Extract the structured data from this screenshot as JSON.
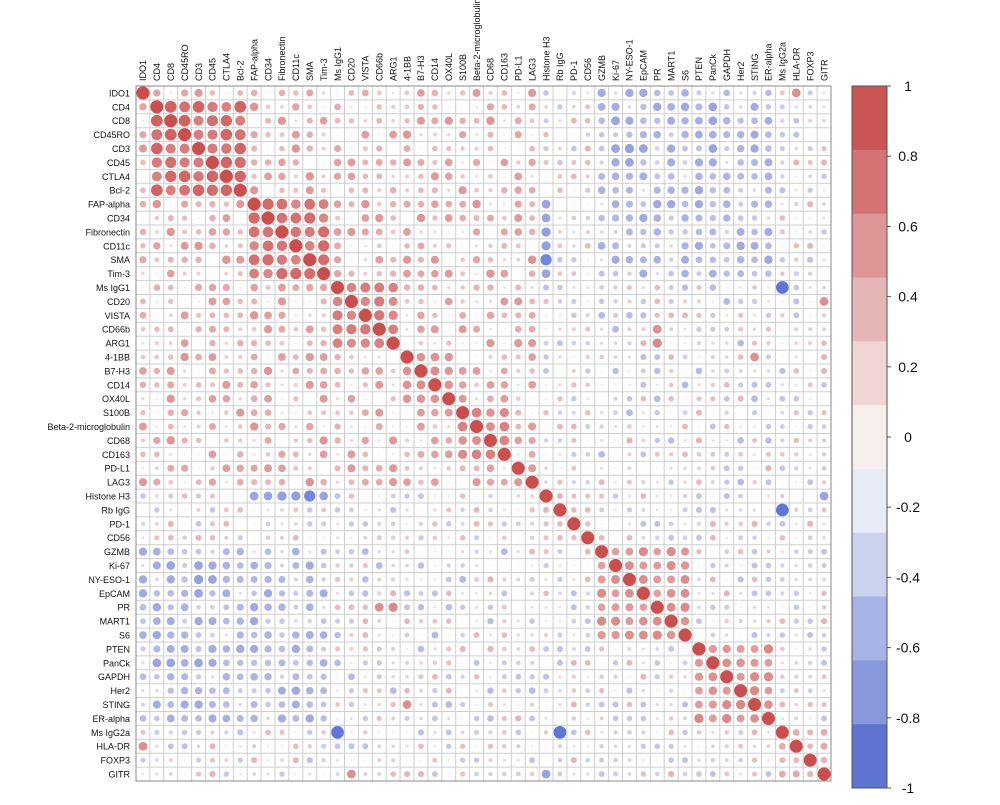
{
  "chart_data": {
    "type": "heatmap",
    "title": "",
    "variables": [
      "IDO1",
      "CD4",
      "CD8",
      "CD45RO",
      "CD3",
      "CD45",
      "CTLA4",
      "Bcl-2",
      "FAP-alpha",
      "CD34",
      "Fibronectin",
      "CD11c",
      "SMA",
      "Tim-3",
      "Ms IgG1",
      "CD20",
      "VISTA",
      "CD66b",
      "ARG1",
      "4-1BB",
      "B7-H3",
      "CD14",
      "OX40L",
      "S100B",
      "Beta-2-microglobulin",
      "CD68",
      "CD163",
      "PD-L1",
      "LAG3",
      "Histone H3",
      "Rb IgG",
      "PD-1",
      "CD56",
      "GZMB",
      "Ki-67",
      "NY-ESO-1",
      "EpCAM",
      "PR",
      "MART1",
      "S6",
      "PTEN",
      "PanCk",
      "GAPDH",
      "Her2",
      "STING",
      "ER-alpha",
      "Ms IgG2a",
      "HLA-DR",
      "FOXP3",
      "GITR"
    ],
    "blocks": [
      {
        "start": 1,
        "end": 7,
        "value": 0.8
      },
      {
        "start": 8,
        "end": 13,
        "value": 0.72
      },
      {
        "start": 14,
        "end": 18,
        "value": 0.62
      },
      {
        "start": 19,
        "end": 22,
        "value": 0.55
      },
      {
        "start": 23,
        "end": 26,
        "value": 0.6
      },
      {
        "start": 27,
        "end": 28,
        "value": 0.38
      },
      {
        "start": 29,
        "end": 32,
        "value": 0.2
      },
      {
        "start": 33,
        "end": 39,
        "value": 0.48
      },
      {
        "start": 40,
        "end": 45,
        "value": 0.5
      },
      {
        "start": 46,
        "end": 49,
        "value": 0.28
      }
    ],
    "special_values": [
      {
        "row": "Ms IgG1",
        "col": "Ms IgG2a",
        "value": -0.95
      },
      {
        "row": "Rb IgG",
        "col": "Ms IgG2a",
        "value": -0.95
      },
      {
        "row": "Histone H3",
        "col": "SMA",
        "value": -0.75
      },
      {
        "row": "Histone H3",
        "col": "CD11c",
        "value": -0.5
      },
      {
        "row": "Histone H3",
        "col": "FAP-alpha",
        "value": -0.45
      },
      {
        "row": "Histone H3",
        "col": "CD34",
        "value": -0.45
      },
      {
        "row": "Histone H3",
        "col": "Fibronectin",
        "value": -0.5
      },
      {
        "row": "Histone H3",
        "col": "Tim-3",
        "value": -0.45
      },
      {
        "row": "Ki-67",
        "col": "CD8",
        "value": -0.45
      },
      {
        "row": "Ki-67",
        "col": "CD3",
        "value": -0.45
      },
      {
        "row": "Ki-67",
        "col": "CD45",
        "value": -0.4
      },
      {
        "row": "Ki-67",
        "col": "SMA",
        "value": -0.4
      },
      {
        "row": "NY-ESO-1",
        "col": "CD3",
        "value": -0.5
      },
      {
        "row": "NY-ESO-1",
        "col": "CD45",
        "value": -0.45
      },
      {
        "row": "NY-ESO-1",
        "col": "CD8",
        "value": -0.4
      },
      {
        "row": "EpCAM",
        "col": "CD3",
        "value": -0.45
      },
      {
        "row": "PanCk",
        "col": "CD4",
        "value": -0.45
      },
      {
        "row": "PanCk",
        "col": "CD8",
        "value": -0.45
      },
      {
        "row": "PanCk",
        "col": "CD3",
        "value": -0.45
      },
      {
        "row": "PanCk",
        "col": "CD45",
        "value": -0.4
      },
      {
        "row": "Histone H3",
        "col": "GITR",
        "value": -0.45
      },
      {
        "row": "PR",
        "col": "ARG1",
        "value": 0.5
      },
      {
        "row": "PR",
        "col": "CD66b",
        "value": 0.45
      },
      {
        "row": "HLA-DR",
        "col": "IDO1",
        "value": 0.45
      },
      {
        "row": "STING",
        "col": "4-1BB",
        "value": 0.45
      },
      {
        "row": "CD20",
        "col": "GITR",
        "value": 0.45
      },
      {
        "row": "Ms IgG1",
        "col": "ARG1",
        "value": 0.55
      }
    ],
    "legend": {
      "position": "right",
      "ticks": [
        1,
        0.8,
        0.6,
        0.4,
        0.2,
        0,
        -0.2,
        -0.4,
        -0.6,
        -0.8,
        -1
      ],
      "range": [
        -1,
        1
      ],
      "colors": [
        "#c95555",
        "#d37374",
        "#dd9595",
        "#e6b5b5",
        "#f0d5d4",
        "#f7eeee",
        "#e9ecf6",
        "#cbd2ee",
        "#a7b3e4",
        "#8898dd",
        "#5f74d1"
      ]
    },
    "grid": true,
    "shape": "circle",
    "colors": {
      "positive": "#c94f4f",
      "negative": "#5a72d4",
      "grid": "#cfcfcf",
      "border": "#888888"
    }
  }
}
